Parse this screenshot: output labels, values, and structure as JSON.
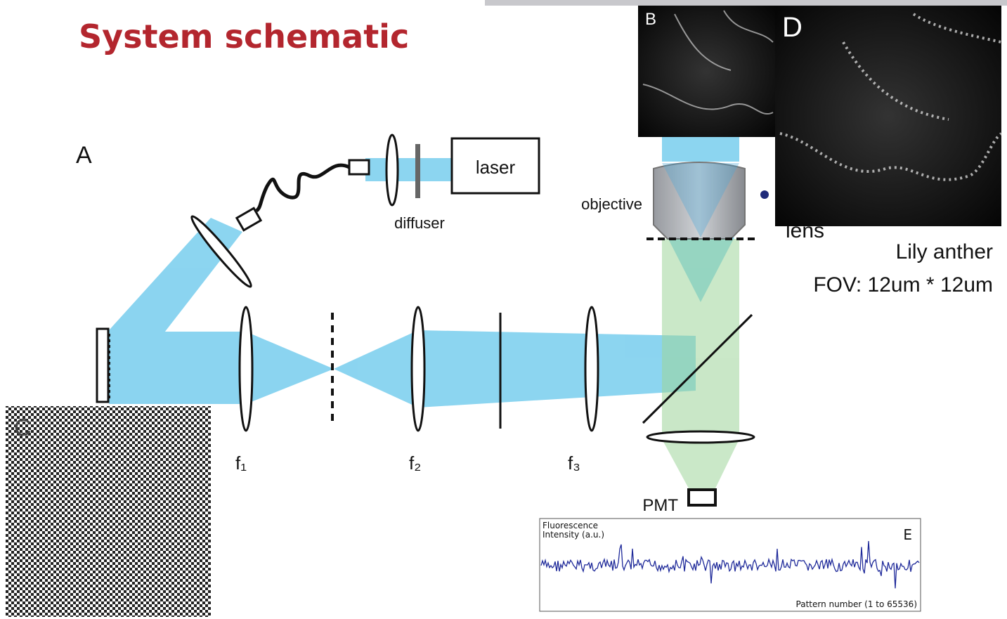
{
  "header": {
    "title": "System schematic"
  },
  "panels": {
    "a": "A",
    "b": "B",
    "c": "C",
    "d": "D",
    "e": "E"
  },
  "components": {
    "laser": "laser",
    "diffuser": "diffuser",
    "objective": "objective",
    "lens": "lens",
    "f1": "f₁",
    "f2": "f₂",
    "f3": "f₃",
    "pmt": "PMT"
  },
  "caption": {
    "sample": "Lily anther",
    "fov": "FOV: 12um * 12um"
  },
  "plot": {
    "y_label_1": "Fluorescence",
    "y_label_2": "Intensity (a.u.)",
    "x_label": "Pattern number (1 to 65536)"
  }
}
